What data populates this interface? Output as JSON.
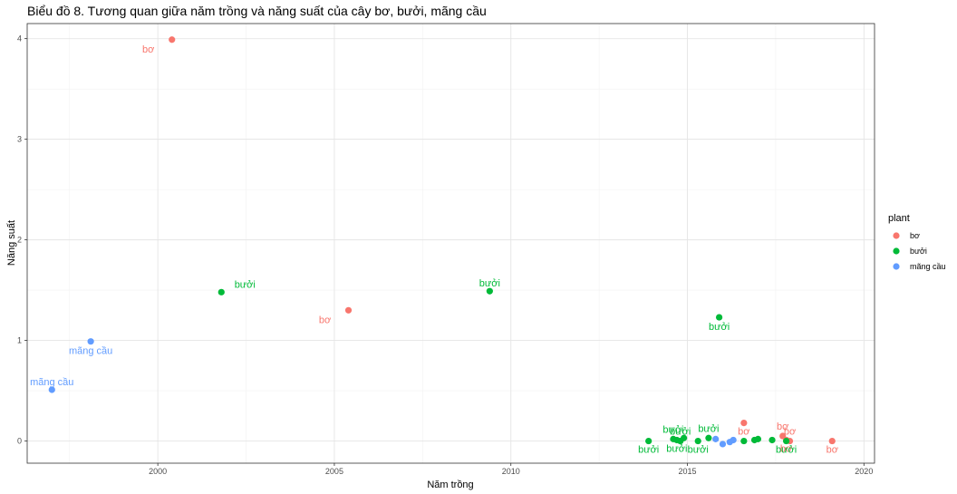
{
  "chart_data": {
    "type": "scatter",
    "title": "Biểu đồ 8. Tương quan giữa năm trồng và năng suất của cây bơ, bưởi, mãng cầu",
    "xlabel": "Năm trồng",
    "ylabel": "Năng suất",
    "xlim": [
      1996.3,
      2020.3
    ],
    "ylim": [
      -0.22,
      4.15
    ],
    "xticks": [
      2000,
      2005,
      2010,
      2015,
      2020
    ],
    "yticks": [
      0,
      1,
      2,
      3,
      4
    ],
    "grid": true,
    "legend": {
      "title": "plant",
      "position": "right"
    },
    "colors": {
      "bơ": "#F8766D",
      "bưởi": "#00BA38",
      "mãng cầu": "#619CFF"
    },
    "series": [
      {
        "name": "bơ",
        "points": [
          {
            "x": 2000.4,
            "y": 3.99,
            "label": "bơ"
          },
          {
            "x": 2005.4,
            "y": 1.3,
            "label": "bơ"
          },
          {
            "x": 2016.6,
            "y": 0.18,
            "label": "bơ"
          },
          {
            "x": 2017.7,
            "y": 0.05,
            "label": "bơ"
          },
          {
            "x": 2017.8,
            "y": 0.01,
            "label": "bơ"
          },
          {
            "x": 2017.9,
            "y": 0.0,
            "label": "bơ"
          },
          {
            "x": 2019.1,
            "y": 0.0,
            "label": "bơ"
          }
        ]
      },
      {
        "name": "bưởi",
        "points": [
          {
            "x": 2001.8,
            "y": 1.48,
            "label": "bưởi"
          },
          {
            "x": 2009.4,
            "y": 1.49,
            "label": "bưởi"
          },
          {
            "x": 2015.9,
            "y": 1.23,
            "label": "bưởi"
          },
          {
            "x": 2013.9,
            "y": 0.0,
            "label": "bưởi"
          },
          {
            "x": 2014.6,
            "y": 0.02,
            "label": "bưởi"
          },
          {
            "x": 2014.7,
            "y": 0.01,
            "label": "bưởi"
          },
          {
            "x": 2014.8,
            "y": 0.0,
            "label": "bưởi"
          },
          {
            "x": 2014.9,
            "y": 0.03,
            "label": ""
          },
          {
            "x": 2015.3,
            "y": 0.0,
            "label": "bưởi"
          },
          {
            "x": 2015.6,
            "y": 0.03,
            "label": "bưởi"
          },
          {
            "x": 2016.6,
            "y": 0.0,
            "label": ""
          },
          {
            "x": 2016.9,
            "y": 0.01,
            "label": ""
          },
          {
            "x": 2017.0,
            "y": 0.02,
            "label": ""
          },
          {
            "x": 2017.4,
            "y": 0.01,
            "label": ""
          },
          {
            "x": 2017.8,
            "y": 0.0,
            "label": "bưởi"
          }
        ]
      },
      {
        "name": "mãng cầu",
        "points": [
          {
            "x": 1997.0,
            "y": 0.51,
            "label": "mãng cầu"
          },
          {
            "x": 1998.1,
            "y": 0.99,
            "label": "mãng cầu"
          },
          {
            "x": 2015.8,
            "y": 0.02,
            "label": ""
          },
          {
            "x": 2016.0,
            "y": -0.03,
            "label": ""
          },
          {
            "x": 2016.2,
            "y": -0.01,
            "label": ""
          },
          {
            "x": 2016.3,
            "y": 0.01,
            "label": ""
          }
        ]
      }
    ]
  }
}
